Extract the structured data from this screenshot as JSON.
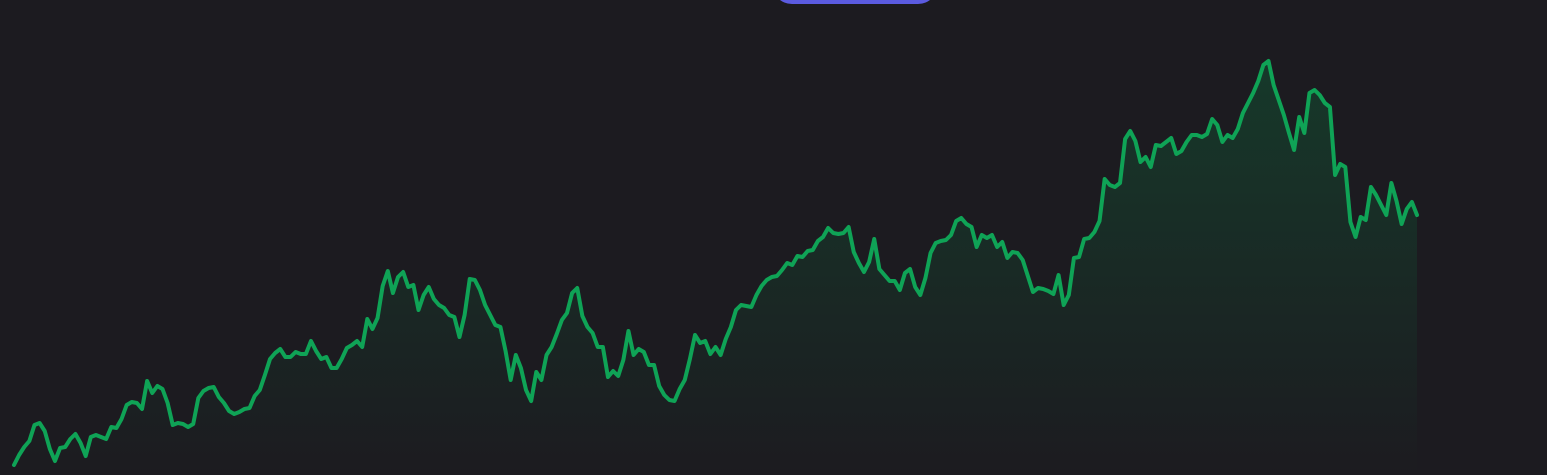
{
  "colors": {
    "background": "#1c1b20",
    "line": "#0fa356",
    "area_top": "#16392a",
    "area_bottom": "#1c1b20",
    "pill": "#5b5be0"
  },
  "top_pill": {
    "label": ""
  },
  "chart_data": {
    "type": "area",
    "title": "",
    "xlabel": "",
    "ylabel": "",
    "grid": false,
    "legend": "none",
    "xlim": [
      0,
      299
    ],
    "ylim": [
      0,
      475
    ],
    "series": [
      {
        "values": [
          10,
          20,
          28,
          34,
          50,
          52,
          44,
          26,
          14,
          27,
          28,
          36,
          41,
          32,
          19,
          38,
          40,
          38,
          36,
          48,
          47,
          56,
          70,
          73,
          72,
          66,
          94,
          82,
          89,
          86,
          72,
          50,
          52,
          51,
          48,
          51,
          77,
          84,
          87,
          88,
          78,
          72,
          64,
          61,
          63,
          66,
          67,
          79,
          85,
          100,
          116,
          122,
          126,
          118,
          118,
          123,
          121,
          121,
          134,
          124,
          116,
          118,
          107,
          107,
          116,
          127,
          130,
          134,
          128,
          156,
          146,
          157,
          189,
          204,
          182,
          198,
          203,
          188,
          190,
          165,
          180,
          188,
          176,
          170,
          167,
          160,
          158,
          138,
          160,
          196,
          195,
          185,
          170,
          160,
          150,
          148,
          124,
          95,
          120,
          107,
          85,
          74,
          103,
          95,
          120,
          128,
          141,
          155,
          162,
          182,
          187,
          159,
          148,
          142,
          128,
          128,
          98,
          104,
          99,
          115,
          144,
          120,
          126,
          123,
          110,
          110,
          89,
          80,
          75,
          74,
          86,
          95,
          116,
          140,
          132,
          134,
          121,
          128,
          120,
          136,
          148,
          165,
          170,
          169,
          168,
          180,
          189,
          195,
          198,
          199,
          205,
          212,
          210,
          219,
          218,
          224,
          225,
          234,
          238,
          247,
          242,
          241,
          242,
          248,
          223,
          212,
          203,
          213,
          236,
          206,
          200,
          194,
          194,
          185,
          202,
          206,
          188,
          180,
          197,
          222,
          232,
          234,
          235,
          240,
          254,
          257,
          251,
          248,
          228,
          240,
          237,
          240,
          228,
          233,
          217,
          223,
          222,
          215,
          199,
          183,
          187,
          186,
          184,
          181,
          200,
          170,
          180,
          217,
          218,
          236,
          237,
          243,
          254,
          296,
          290,
          288,
          292,
          336,
          344,
          334,
          313,
          318,
          308,
          330,
          329,
          333,
          337,
          321,
          324,
          333,
          340,
          340,
          338,
          341,
          356,
          350,
          333,
          340,
          337,
          346,
          362,
          372,
          382,
          394,
          410,
          414,
          390,
          375,
          360,
          342,
          325,
          358,
          342,
          382,
          385,
          380,
          372,
          368,
          300,
          311,
          308,
          253,
          238,
          258,
          255,
          288,
          280,
          270,
          260,
          292,
          274,
          251,
          266,
          273,
          260
        ]
      }
    ]
  }
}
